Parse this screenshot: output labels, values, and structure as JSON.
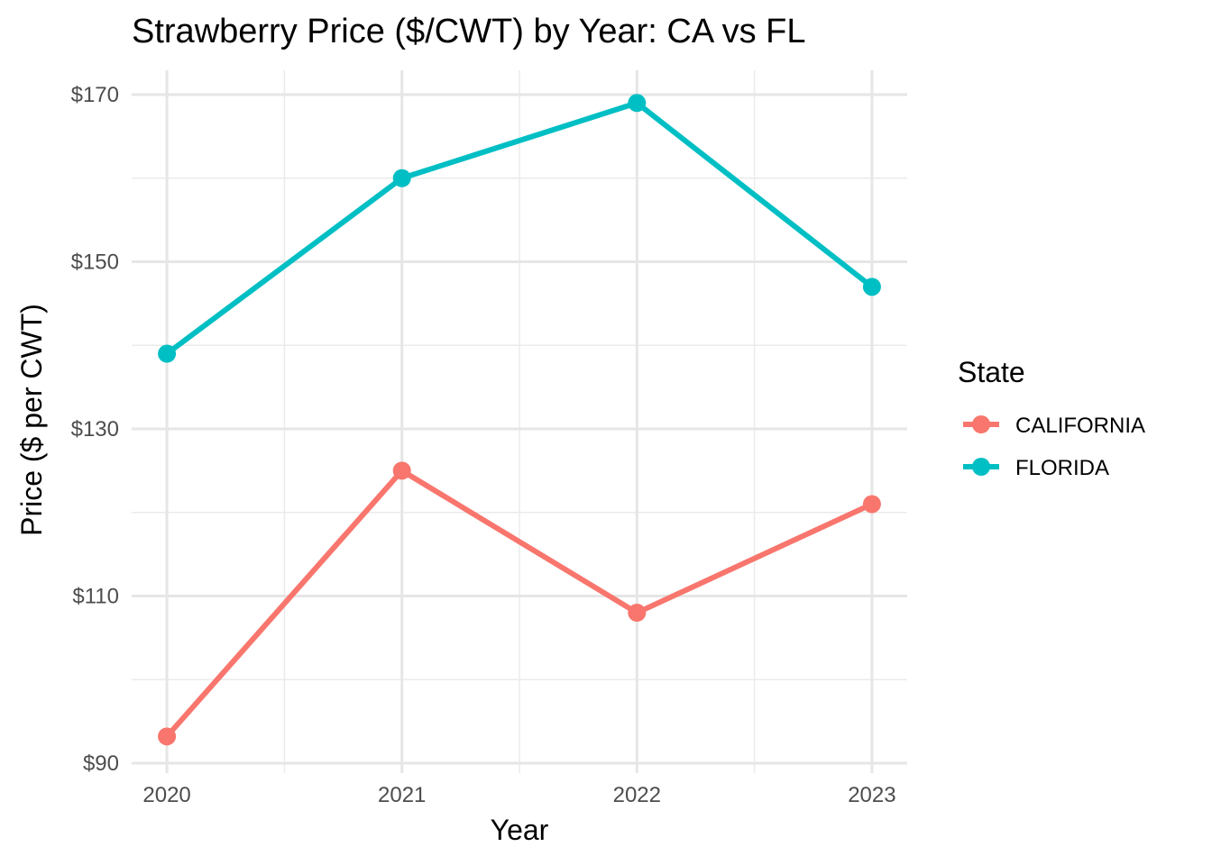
{
  "chart_data": {
    "type": "line",
    "title": "Strawberry Price ($/CWT) by Year: CA vs FL",
    "xlabel": "Year",
    "ylabel": "Price ($ per CWT)",
    "x": [
      2020,
      2021,
      2022,
      2023
    ],
    "x_tick_labels": [
      "2020",
      "2021",
      "2022",
      "2023"
    ],
    "y_ticks": [
      90,
      110,
      130,
      150,
      170
    ],
    "y_tick_labels": [
      "$90",
      "$110",
      "$130",
      "$150",
      "$170"
    ],
    "ylim": [
      90,
      172
    ],
    "xlim": [
      2019.85,
      2023.15
    ],
    "grid": true,
    "legend": {
      "title": "State",
      "placement": "right"
    },
    "series": [
      {
        "name": "CALIFORNIA",
        "color": "#F8766D",
        "values": [
          93.2,
          125,
          108,
          121
        ]
      },
      {
        "name": "FLORIDA",
        "color": "#00BFC4",
        "values": [
          139,
          160,
          169,
          147
        ]
      }
    ]
  }
}
